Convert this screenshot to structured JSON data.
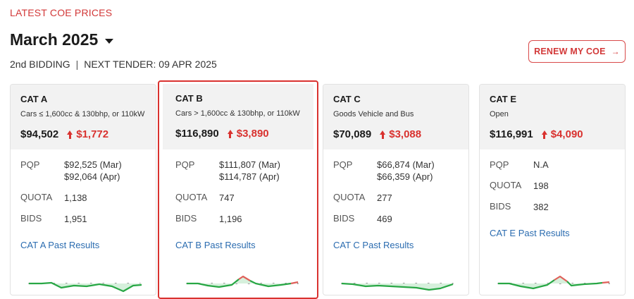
{
  "header": {
    "eyebrow": "LATEST COE PRICES",
    "month": "March 2025",
    "bidding": "2nd BIDDING",
    "separator": "|",
    "next_tender": "NEXT TENDER: 09 APR 2025",
    "renew_label": "RENEW MY COE",
    "renew_arrow": "→"
  },
  "labels": {
    "pqp": "PQP",
    "quota": "QUOTA",
    "bids": "BIDS"
  },
  "colors": {
    "accent": "#d9322f",
    "link": "#2b6cb0",
    "spark_green": "#28a745",
    "spark_red": "#e0605a"
  },
  "cards": [
    {
      "cat": "CAT A",
      "desc": "Cars ≤ 1,600cc & 130bhp, or 110kW",
      "price": "$94,502",
      "change": "$1,772",
      "pqp1": "$92,525 (Mar)",
      "pqp2": "$92,064 (Apr)",
      "quota": "1,138",
      "bids": "1,951",
      "link": "CAT A Past Results",
      "selected": false
    },
    {
      "cat": "CAT B",
      "desc": "Cars > 1,600cc & 130bhp, or 110kW",
      "price": "$116,890",
      "change": "$3,890",
      "pqp1": "$111,807 (Mar)",
      "pqp2": "$114,787 (Apr)",
      "quota": "747",
      "bids": "1,196",
      "link": "CAT B Past Results",
      "selected": true
    },
    {
      "cat": "CAT C",
      "desc": "Goods Vehicle and Bus",
      "price": "$70,089",
      "change": "$3,088",
      "pqp1": "$66,874 (Mar)",
      "pqp2": "$66,359 (Apr)",
      "quota": "277",
      "bids": "469",
      "link": "CAT C Past Results",
      "selected": false
    },
    {
      "cat": "CAT E",
      "desc": "Open",
      "price": "$116,991",
      "change": "$4,090",
      "pqp1": "N.A",
      "pqp2": "",
      "quota": "198",
      "bids": "382",
      "link": "CAT E Past Results",
      "selected": false
    }
  ]
}
